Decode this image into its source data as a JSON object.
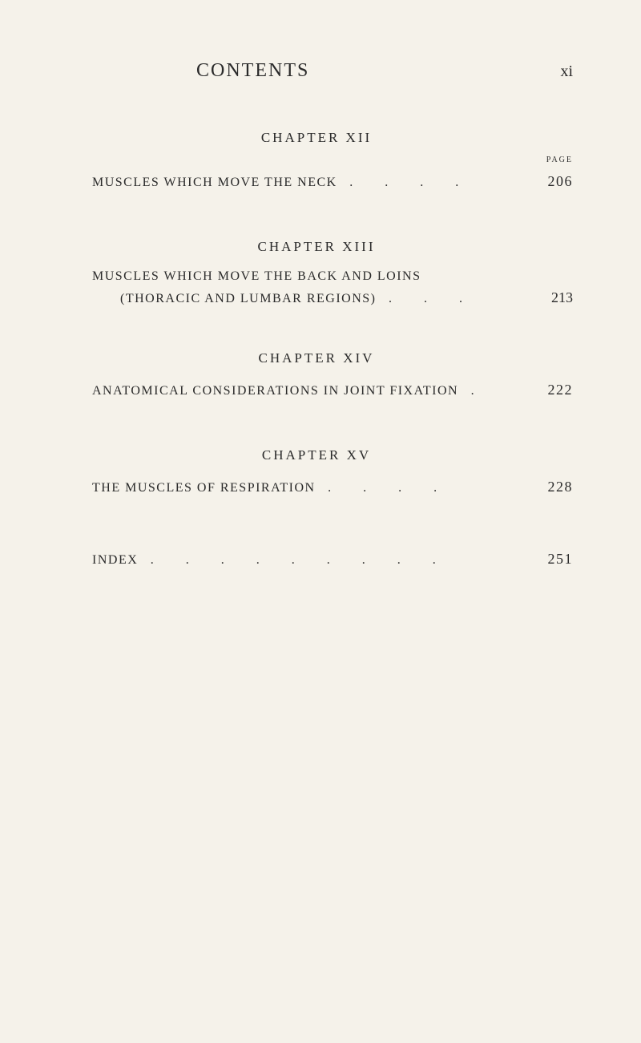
{
  "header": {
    "title": "CONTENTS",
    "page_roman": "xi"
  },
  "page_label": "PAGE",
  "chapters": [
    {
      "heading": "CHAPTER  XII",
      "entry_text": "MUSCLES WHICH MOVE THE NECK",
      "dots": ".   .   .   .",
      "page": "206",
      "show_page_label": true
    },
    {
      "heading": "CHAPTER  XIII",
      "line1": "MUSCLES   WHICH   MOVE   THE   BACK   AND   LOINS",
      "entry_text": "(THORACIC AND LUMBAR REGIONS)",
      "dots": ".   .   .",
      "page": "213",
      "multiline": true
    },
    {
      "heading": "CHAPTER  XIV",
      "entry_text": "ANATOMICAL CONSIDERATIONS IN JOINT FIXATION",
      "dots": ".",
      "page": "222"
    },
    {
      "heading": "CHAPTER  XV",
      "entry_text": "THE MUSCLES OF RESPIRATION",
      "dots": ".   .   .   .",
      "page": "228"
    }
  ],
  "index": {
    "text": "INDEX",
    "dots": ".   .   .   .   .   .   .   .   .",
    "page": "251"
  }
}
